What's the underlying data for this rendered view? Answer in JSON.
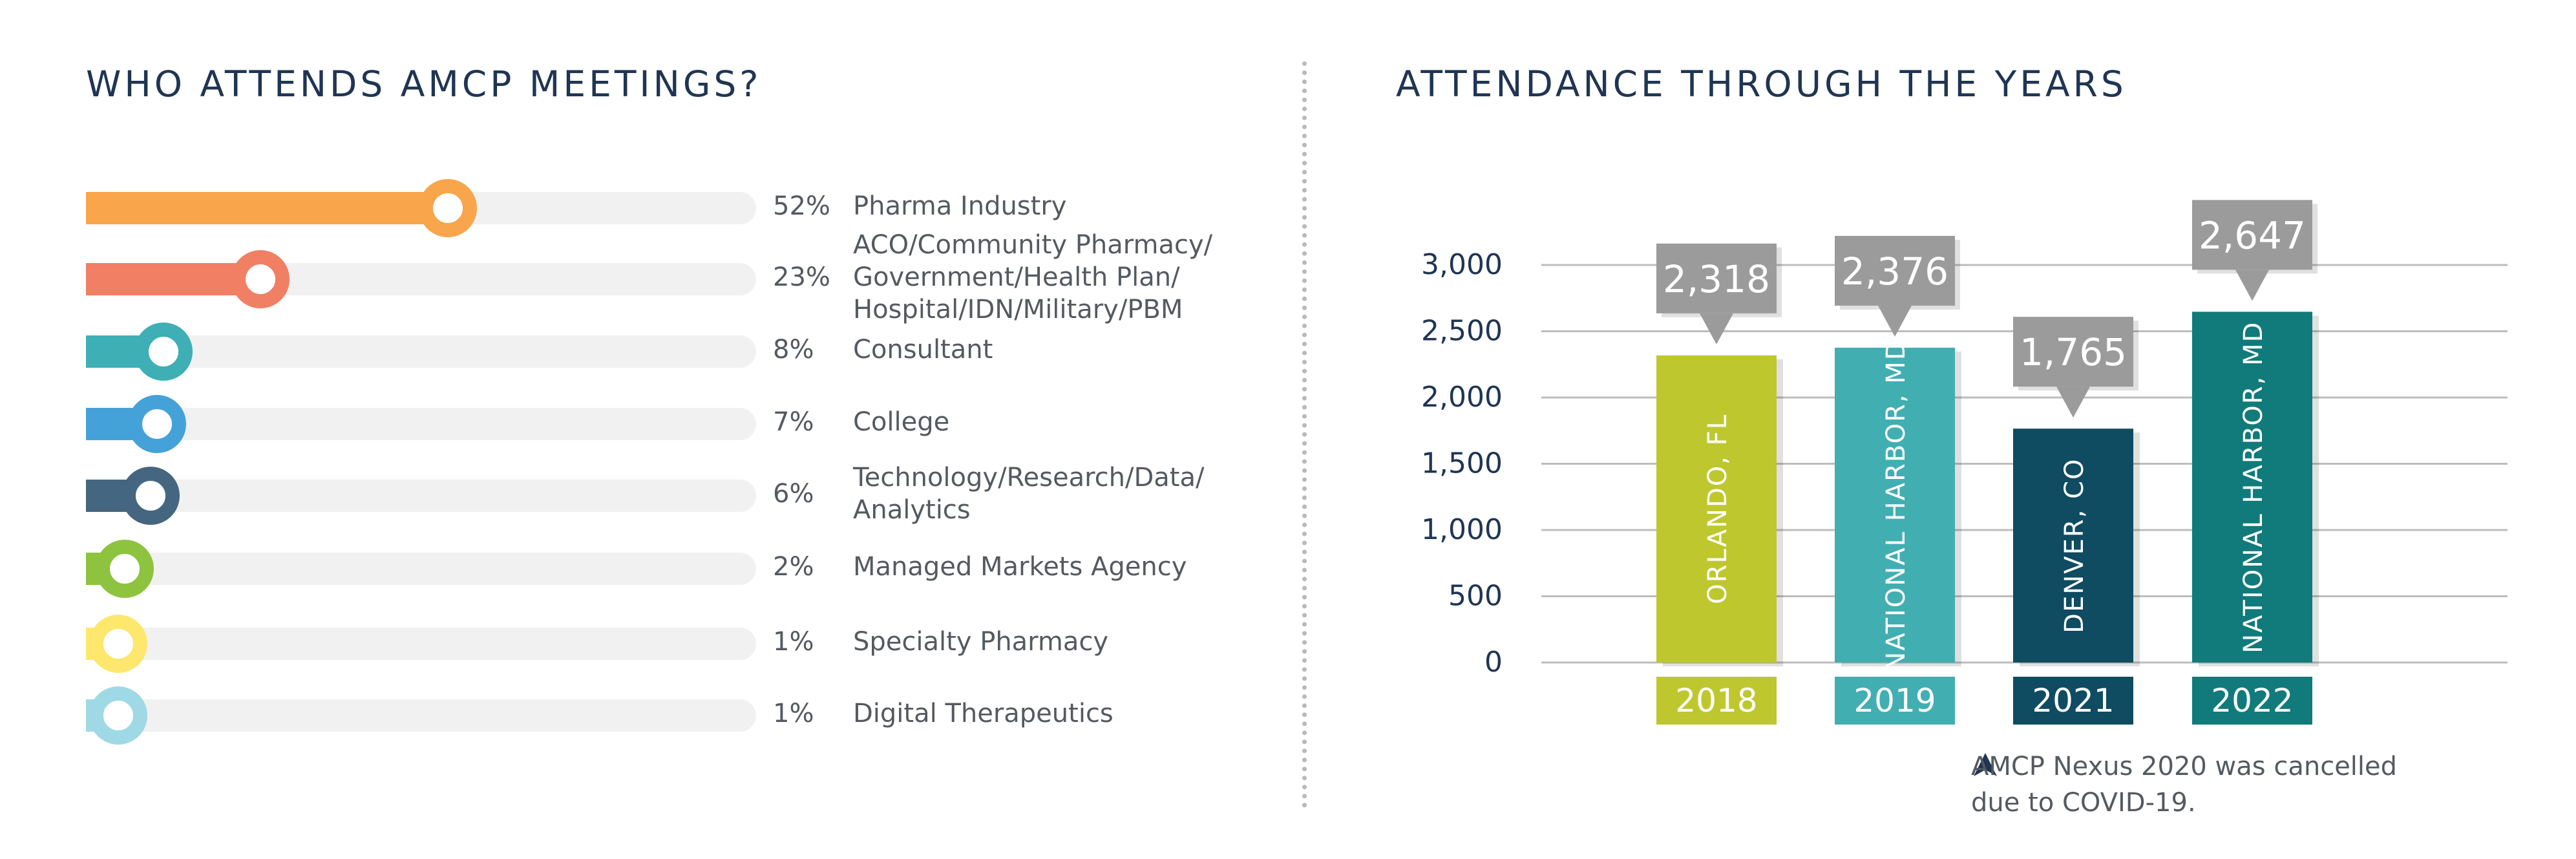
{
  "left_panel": {
    "title": "WHO ATTENDS AMCP MEETINGS?",
    "rows": [
      {
        "pct_label": "52%",
        "value": 52,
        "label": "Pharma Industry",
        "color": "#f9a54c"
      },
      {
        "pct_label": "23%",
        "value": 23,
        "label": "ACO/Community Pharmacy/\nGovernment/Health Plan/\nHospital/IDN/Military/PBM",
        "color": "#f07f64"
      },
      {
        "pct_label": "8%",
        "value": 8,
        "label": "Consultant",
        "color": "#3eafb5"
      },
      {
        "pct_label": "7%",
        "value": 7,
        "label": "College",
        "color": "#44a2d8"
      },
      {
        "pct_label": "6%",
        "value": 6,
        "label": "Technology/Research/Data/\nAnalytics",
        "color": "#456680"
      },
      {
        "pct_label": "2%",
        "value": 2,
        "label": "Managed Markets Agency",
        "color": "#8dc33f"
      },
      {
        "pct_label": "1%",
        "value": 1,
        "label": "Specialty Pharmacy",
        "color": "#fde76d"
      },
      {
        "pct_label": "1%",
        "value": 1,
        "label": "Digital Therapeutics",
        "color": "#9fd9e6"
      }
    ]
  },
  "right_panel": {
    "title": "ATTENDANCE THROUGH THE YEARS",
    "note": "AMCP Nexus 2020 was cancelled\ndue to COVID-19.",
    "note_icon": "arrow-up-icon"
  },
  "chart_data": [
    {
      "type": "bar",
      "title": "WHO ATTENDS AMCP MEETINGS?",
      "orientation": "horizontal",
      "categories": [
        "Pharma Industry",
        "ACO/Community Pharmacy/Government/Health Plan/Hospital/IDN/Military/PBM",
        "Consultant",
        "College",
        "Technology/Research/Data/Analytics",
        "Managed Markets Agency",
        "Specialty Pharmacy",
        "Digital Therapeutics"
      ],
      "values": [
        52,
        23,
        8,
        7,
        6,
        2,
        1,
        1
      ],
      "unit": "%"
    },
    {
      "type": "bar",
      "title": "ATTENDANCE THROUGH THE YEARS",
      "categories": [
        "2018",
        "2019",
        "2021",
        "2022"
      ],
      "values": [
        2318,
        2376,
        1765,
        2647
      ],
      "value_labels": [
        "2,318",
        "2,376",
        "1,765",
        "2,647"
      ],
      "bar_labels": [
        "ORLANDO, FL",
        "NATIONAL HARBOR, MD",
        "DENVER, CO",
        "NATIONAL HARBOR, MD"
      ],
      "colors": [
        "#bfc72f",
        "#41aeb2",
        "#0f4b61",
        "#117a7a"
      ],
      "callout_color": "#9b9b9b",
      "ylim": [
        0,
        3000
      ],
      "yticks": [
        0,
        500,
        1000,
        1500,
        2000,
        2500,
        3000
      ],
      "ytick_labels": [
        "0",
        "500",
        "1,000",
        "1,500",
        "2,000",
        "2,500",
        "3,000"
      ],
      "grid": true,
      "grid_color": "#bdbdbd"
    }
  ]
}
